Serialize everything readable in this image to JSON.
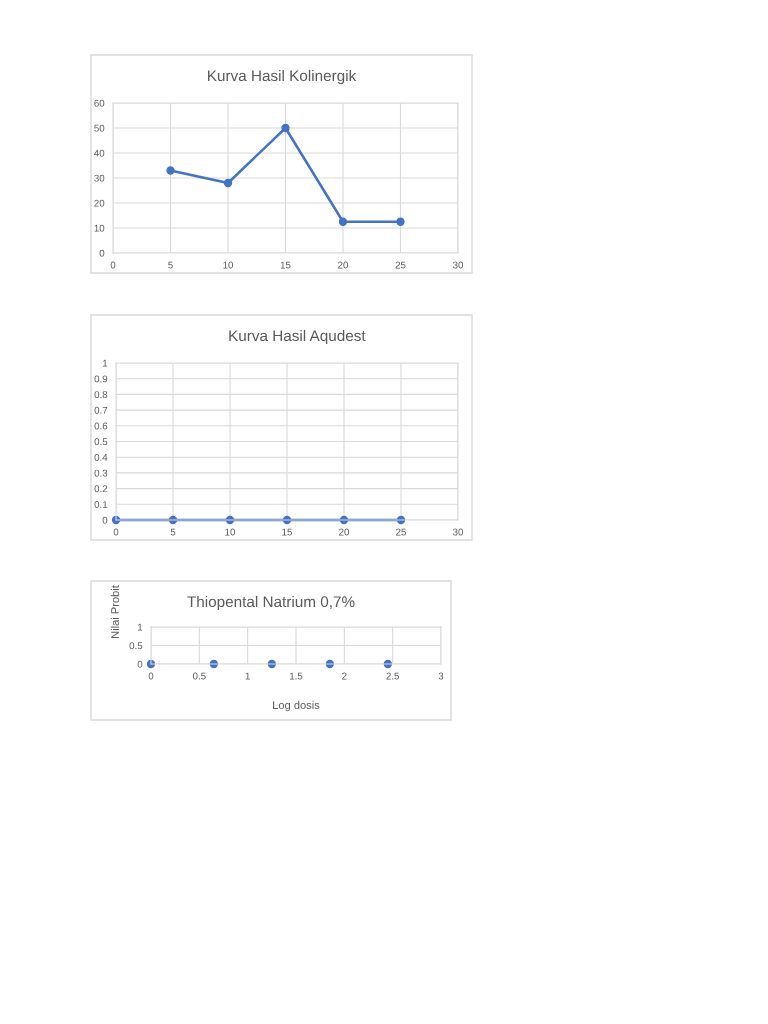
{
  "chart_data": [
    {
      "type": "line",
      "title": "Kurva Hasil Kolinergik",
      "x": [
        5,
        10,
        15,
        20,
        25
      ],
      "series": [
        {
          "color": "#4472c4",
          "values": [
            33,
            28,
            50,
            12.5,
            12.5
          ]
        }
      ],
      "xlim": [
        0,
        30
      ],
      "xticks": [
        0,
        5,
        10,
        15,
        20,
        25,
        30
      ],
      "ylim": [
        0,
        60
      ],
      "yticks": [
        0,
        10,
        20,
        30,
        40,
        50,
        60
      ],
      "grid": true,
      "marker": "circle",
      "line_style": "solid"
    },
    {
      "type": "line",
      "title": "Kurva Hasil Aqudest",
      "x": [
        0,
        5,
        10,
        15,
        20,
        25
      ],
      "series": [
        {
          "color": "#4472c4",
          "values": [
            0,
            0,
            0,
            0,
            0,
            0
          ]
        }
      ],
      "xlim": [
        0,
        30
      ],
      "xticks": [
        0,
        5,
        10,
        15,
        20,
        25,
        30
      ],
      "ylim": [
        0,
        1
      ],
      "yticks": [
        0,
        0.1,
        0.2,
        0.3,
        0.4,
        0.5,
        0.6,
        0.7,
        0.8,
        0.9,
        1
      ],
      "grid": true,
      "marker": "circle",
      "line_style": "solid"
    },
    {
      "type": "scatter",
      "title": "Thiopental Natrium 0,7%",
      "xlabel": "Log dosis",
      "ylabel": "Nilai Probit",
      "x": [
        0,
        0.65,
        1.25,
        1.85,
        2.45
      ],
      "series": [
        {
          "color": "#4472c4",
          "values": [
            0,
            0,
            0,
            0,
            0
          ]
        }
      ],
      "xlim": [
        0,
        3
      ],
      "xticks": [
        0,
        0.5,
        1,
        1.5,
        2,
        2.5,
        3
      ],
      "ylim": [
        0,
        1
      ],
      "yticks": [
        0,
        0.5,
        1
      ],
      "grid": true,
      "marker": "circle"
    }
  ]
}
